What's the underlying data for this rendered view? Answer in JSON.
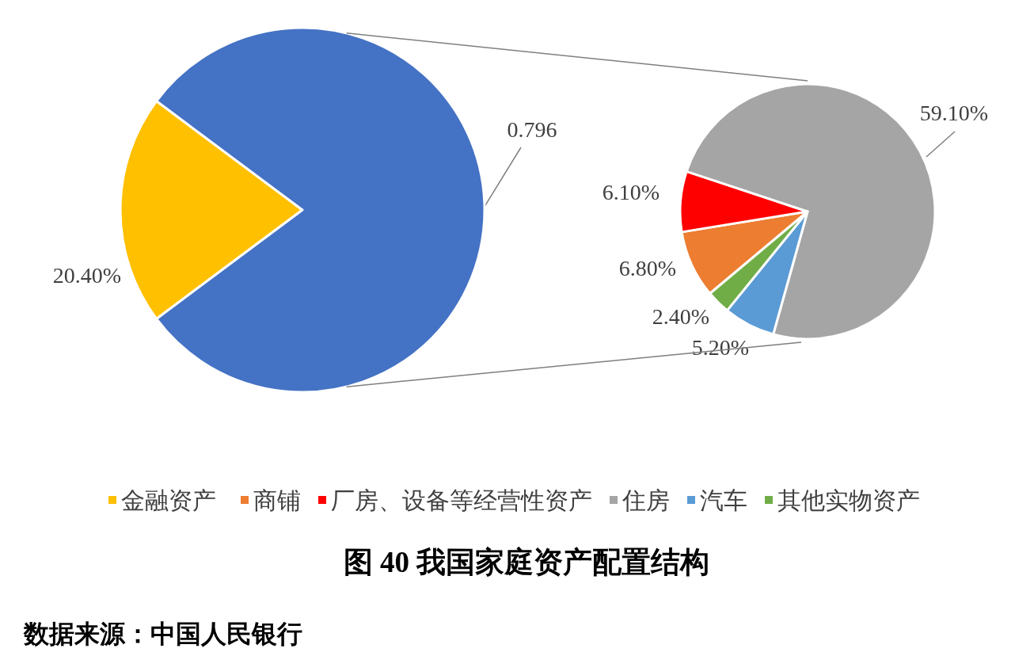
{
  "chart_data": [
    {
      "type": "pie",
      "title": "图 40 我国家庭资产配置结构",
      "annotations": [
        "数据来源：中国人民银行"
      ],
      "legend": "bottom",
      "categories": [
        "金融资产",
        null
      ],
      "values": [
        0.204,
        0.796
      ],
      "colors": [
        "#ffc000",
        "#4472c4"
      ],
      "value_labels": [
        "20.40%",
        "0.796"
      ]
    },
    {
      "type": "pie",
      "legend": "bottom",
      "categories": [
        "商铺",
        "厂房、设备等经营性资产",
        "住房",
        "汽车",
        "其他实物资产"
      ],
      "values": [
        6.8,
        6.1,
        59.1,
        5.2,
        2.4
      ],
      "colors": [
        "#ed7d31",
        "#ff0000",
        "#a5a5a5",
        "#5b9bd5",
        "#70ad47"
      ],
      "value_labels": [
        "6.80%",
        "6.10%",
        "59.10%",
        "5.20%",
        "2.40%"
      ]
    }
  ]
}
